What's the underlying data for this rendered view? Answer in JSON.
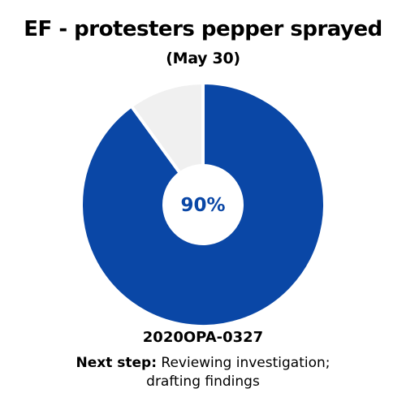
{
  "chart_data": {
    "type": "pie",
    "title": "EF - protesters pepper sprayed",
    "subtitle": "(May 30)",
    "center_label": "90%",
    "slices": [
      {
        "value": 90,
        "color": "#0a47a6"
      },
      {
        "value": 10,
        "color": "#f0f0f0"
      }
    ]
  },
  "footer": {
    "case_id": "2020OPA-0327",
    "next_step_label": "Next step:",
    "next_step_line1": "Reviewing investigation;",
    "next_step_line2": "drafting findings"
  },
  "colors": {
    "accent": "#0a47a6",
    "remainder": "#f0f0f0",
    "background": "#ffffff"
  }
}
